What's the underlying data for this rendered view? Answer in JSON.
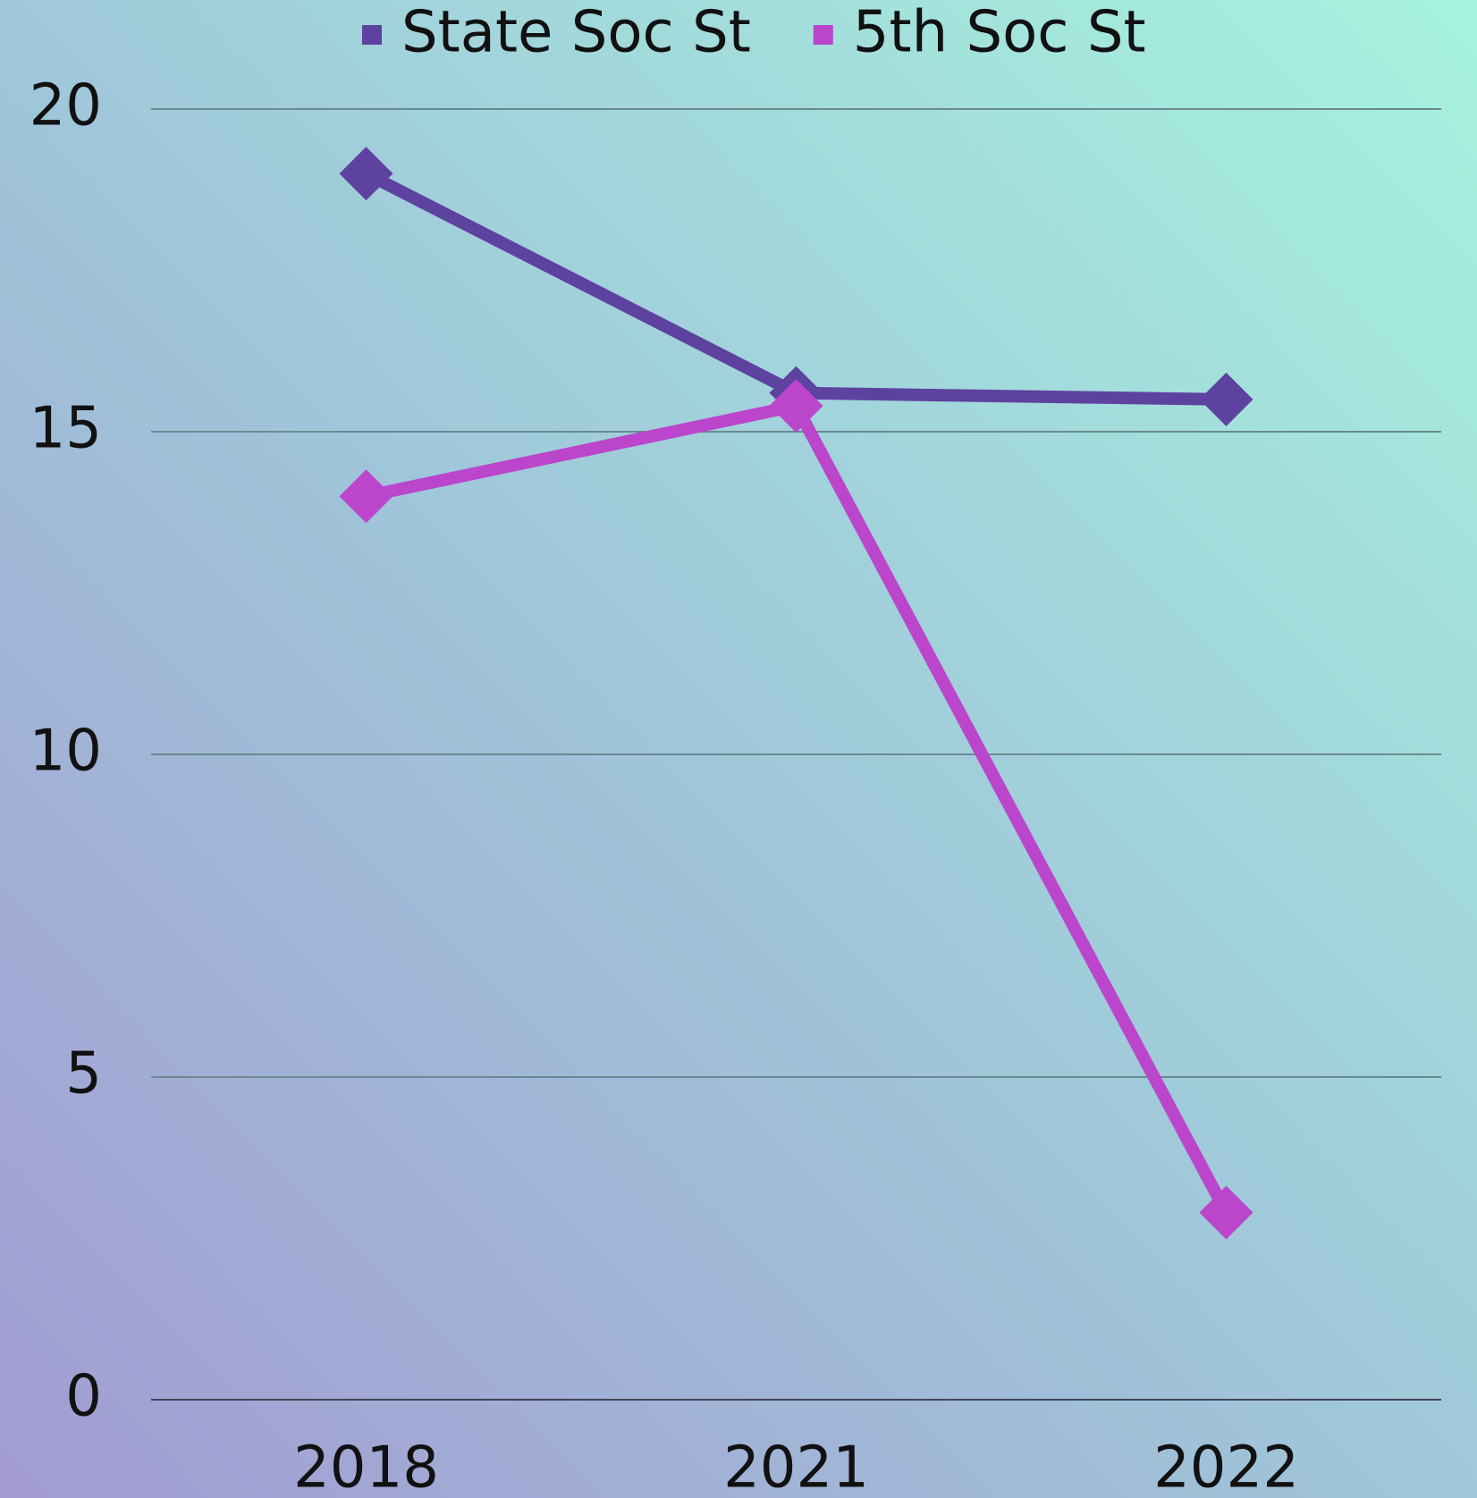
{
  "chart_data": {
    "type": "line",
    "categories": [
      "2018",
      "2021",
      "2022"
    ],
    "series": [
      {
        "name": "State Soc St",
        "color": "#5e42a0",
        "values": [
          19,
          15.6,
          15.5
        ]
      },
      {
        "name": "5th Soc St",
        "color": "#bb46cc",
        "values": [
          14,
          15.4,
          2.9
        ]
      }
    ],
    "ylim": [
      0,
      20
    ],
    "yticks": [
      0,
      5,
      10,
      15,
      20
    ],
    "grid": true,
    "legend": "top"
  }
}
